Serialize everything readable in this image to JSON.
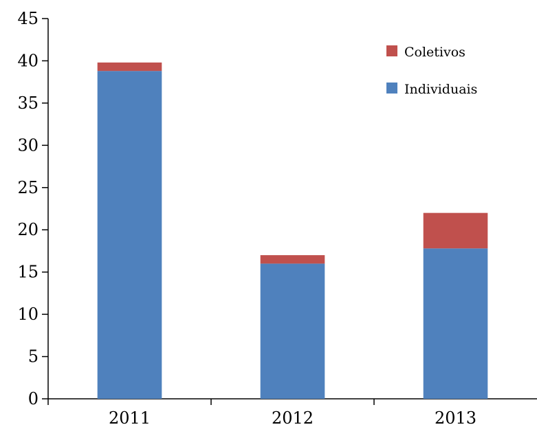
{
  "chart_data": {
    "type": "bar",
    "stacked": true,
    "categories": [
      "2011",
      "2012",
      "2013"
    ],
    "series": [
      {
        "name": "Individuais",
        "values": [
          38.8,
          16.0,
          17.8
        ],
        "color": "#4f81bd"
      },
      {
        "name": "Coletivos",
        "values": [
          1.0,
          1.0,
          4.2
        ],
        "color": "#c0504d"
      }
    ],
    "title": "",
    "xlabel": "",
    "ylabel": "",
    "ylim": [
      0,
      45
    ],
    "yticks": [
      "0",
      "5",
      "10",
      "15",
      "20",
      "25",
      "30",
      "35",
      "40",
      "45"
    ],
    "grid": false,
    "legend": {
      "position": "top-right",
      "entries": [
        "Coletivos",
        "Individuais"
      ]
    }
  }
}
